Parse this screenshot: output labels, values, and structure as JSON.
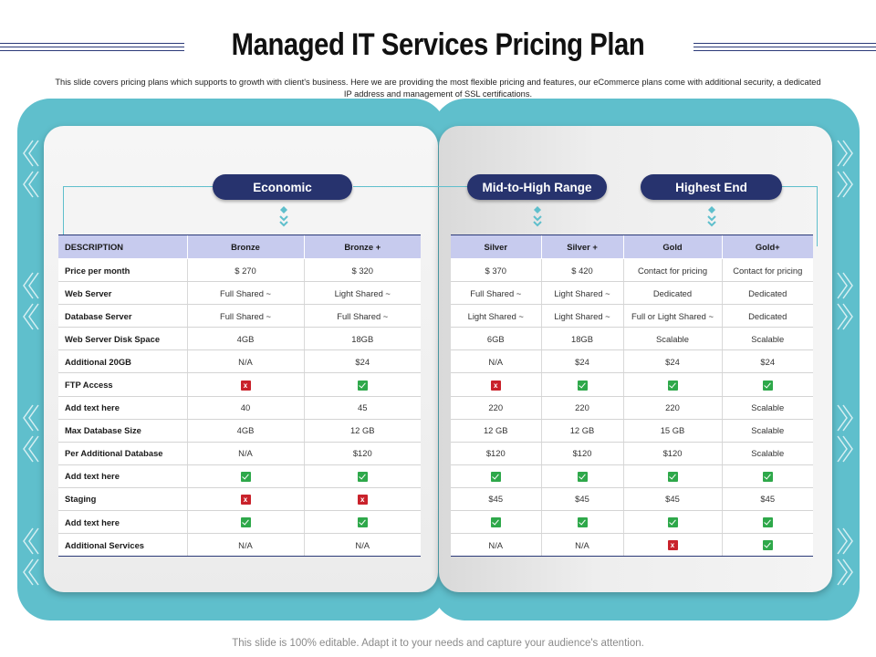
{
  "title": "Managed IT Services Pricing Plan",
  "subtitle": "This slide covers pricing plans which supports to growth with client's business. Here we are providing the most flexible pricing and features, our eCommerce plans come with additional security, a dedicated IP address and management of SSL certifications.",
  "footer": "This slide is 100% editable. Adapt it to your needs and capture your audience's attention.",
  "colors": {
    "teal": "#5fbfcc",
    "navy": "#27336e",
    "header_row": "#c7cbee",
    "check": "#2ea84a",
    "cross": "#c9222b"
  },
  "categories": {
    "economic": "Economic",
    "mid_high": "Mid-to-High Range",
    "highest": "Highest End"
  },
  "table_left": {
    "headers": [
      "DESCRIPTION",
      "Bronze",
      "Bronze +"
    ],
    "rows": [
      [
        "Price per month",
        "$ 270",
        "$ 320"
      ],
      [
        "Web Server",
        "Full Shared ~",
        "Light Shared ~"
      ],
      [
        "Database Server",
        "Full Shared ~",
        "Full Shared ~"
      ],
      [
        "Web Server Disk Space",
        "4GB",
        "18GB"
      ],
      [
        "Additional 20GB",
        "N/A",
        "$24"
      ],
      [
        "FTP Access",
        "cross-icon",
        "check-icon"
      ],
      [
        "Add text here",
        "40",
        "45"
      ],
      [
        "Max Database Size",
        "4GB",
        "12 GB"
      ],
      [
        "Per Additional Database",
        "N/A",
        "$120"
      ],
      [
        "Add text here",
        "check-icon",
        "check-icon"
      ],
      [
        "Staging",
        "cross-icon",
        "cross-icon"
      ],
      [
        "Add text here",
        "check-icon",
        "check-icon"
      ],
      [
        "Additional Services",
        "N/A",
        "N/A"
      ]
    ]
  },
  "table_right": {
    "headers": [
      "Silver",
      "Silver +",
      "Gold",
      "Gold+"
    ],
    "rows": [
      [
        "$ 370",
        "$ 420",
        "Contact for pricing",
        "Contact for pricing"
      ],
      [
        "Full Shared ~",
        "Light Shared ~",
        "Dedicated",
        "Dedicated"
      ],
      [
        "Light Shared ~",
        "Light Shared ~",
        "Full or Light Shared ~",
        "Dedicated"
      ],
      [
        "6GB",
        "18GB",
        "Scalable",
        "Scalable"
      ],
      [
        "N/A",
        "$24",
        "$24",
        "$24"
      ],
      [
        "cross-icon",
        "check-icon",
        "check-icon",
        "check-icon"
      ],
      [
        "220",
        "220",
        "220",
        "Scalable"
      ],
      [
        "12 GB",
        "12 GB",
        "15 GB",
        "Scalable"
      ],
      [
        "$120",
        "$120",
        "$120",
        "Scalable"
      ],
      [
        "check-icon",
        "check-icon",
        "check-icon",
        "check-icon"
      ],
      [
        "$45",
        "$45",
        "$45",
        "$45"
      ],
      [
        "check-icon",
        "check-icon",
        "check-icon",
        "check-icon"
      ],
      [
        "N/A",
        "N/A",
        "cross-icon",
        "check-icon"
      ]
    ]
  }
}
